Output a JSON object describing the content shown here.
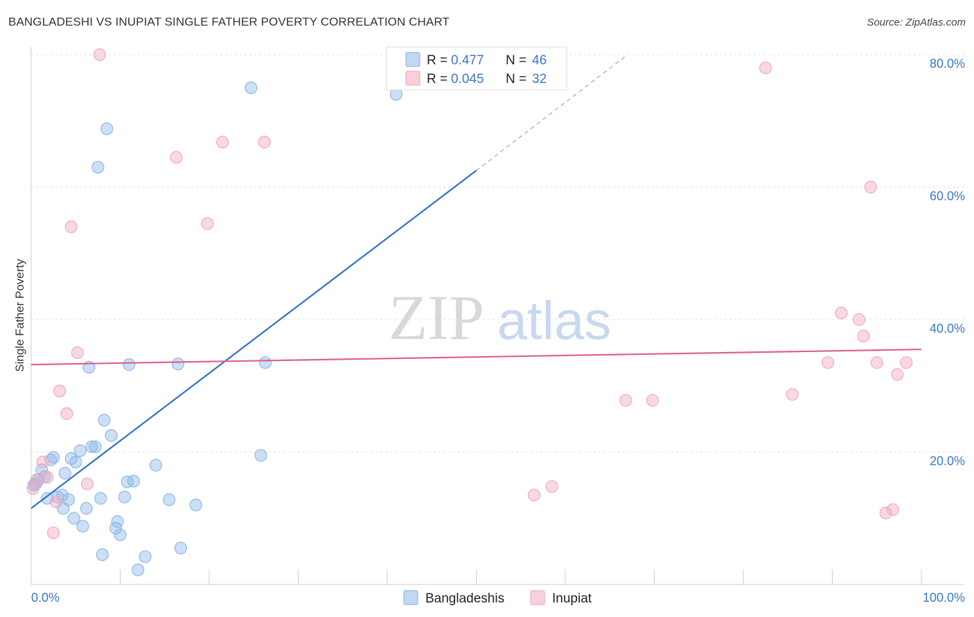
{
  "header": {
    "title": "BANGLADESHI VS INUPIAT SINGLE FATHER POVERTY CORRELATION CHART",
    "source": "Source: ZipAtlas.com"
  },
  "watermark": {
    "zip": "ZIP",
    "atlas": "atlas"
  },
  "chart_data": {
    "type": "scatter",
    "title": "BANGLADESHI VS INUPIAT SINGLE FATHER POVERTY CORRELATION CHART",
    "xlabel": "",
    "ylabel": "Single Father Poverty",
    "xlim": [
      0,
      100
    ],
    "ylim": [
      0,
      80
    ],
    "x_tick_labels": {
      "left": "0.0%",
      "right": "100.0%"
    },
    "y_ticks": [
      {
        "value": 20,
        "label": "20.0%"
      },
      {
        "value": 40,
        "label": "40.0%"
      },
      {
        "value": 60,
        "label": "60.0%"
      },
      {
        "value": 80,
        "label": "80.0%"
      }
    ],
    "legend": [
      {
        "series": "Bangladeshis",
        "r_label": "R =",
        "r_value": "0.477",
        "n_label": "N =",
        "n_value": "46"
      },
      {
        "series": "Inupiat",
        "r_label": "R =",
        "r_value": "0.045",
        "n_label": "N =",
        "n_value": "32"
      }
    ],
    "series": [
      {
        "name": "Bangladeshis",
        "color": "#8fb8e8",
        "line_color": "#2f6fcc",
        "trend": {
          "x0": 0,
          "y0": 11.5,
          "x1": 50,
          "y1": 62.5,
          "dash_to_x": 67,
          "dash_to_y": 80
        },
        "points": [
          [
            0.5,
            15.2
          ],
          [
            0.8,
            15.8
          ],
          [
            1.2,
            17.3
          ],
          [
            1.5,
            16.3
          ],
          [
            1.8,
            13.0
          ],
          [
            2.2,
            18.8
          ],
          [
            2.5,
            19.2
          ],
          [
            3.0,
            13.2
          ],
          [
            3.5,
            13.5
          ],
          [
            3.6,
            11.5
          ],
          [
            3.8,
            16.8
          ],
          [
            4.2,
            12.8
          ],
          [
            4.5,
            19.0
          ],
          [
            4.8,
            10.0
          ],
          [
            5.0,
            18.5
          ],
          [
            5.5,
            20.2
          ],
          [
            5.8,
            8.8
          ],
          [
            6.2,
            11.5
          ],
          [
            6.5,
            32.8
          ],
          [
            6.8,
            20.8
          ],
          [
            7.2,
            20.8
          ],
          [
            7.5,
            63.0
          ],
          [
            7.8,
            13.0
          ],
          [
            8.0,
            4.5
          ],
          [
            8.2,
            24.8
          ],
          [
            8.5,
            68.8
          ],
          [
            9.0,
            22.5
          ],
          [
            9.5,
            8.5
          ],
          [
            9.7,
            9.5
          ],
          [
            10.0,
            7.5
          ],
          [
            10.5,
            13.2
          ],
          [
            10.8,
            15.5
          ],
          [
            11.0,
            33.2
          ],
          [
            11.5,
            15.6
          ],
          [
            12.0,
            2.2
          ],
          [
            12.8,
            4.2
          ],
          [
            14.0,
            18.0
          ],
          [
            15.5,
            12.8
          ],
          [
            16.5,
            33.3
          ],
          [
            16.8,
            5.5
          ],
          [
            18.5,
            12.0
          ],
          [
            24.7,
            75.0
          ],
          [
            25.8,
            19.5
          ],
          [
            26.3,
            33.5
          ],
          [
            41.0,
            74.0
          ],
          [
            0.3,
            15.0
          ]
        ]
      },
      {
        "name": "Inupiat",
        "color": "#f2a9bf",
        "line_color": "#e0608a",
        "trend": {
          "x0": 0,
          "y0": 33.2,
          "x1": 100,
          "y1": 35.5
        },
        "points": [
          [
            0.2,
            14.5
          ],
          [
            0.6,
            15.8
          ],
          [
            1.3,
            18.5
          ],
          [
            1.8,
            16.2
          ],
          [
            2.5,
            7.8
          ],
          [
            2.8,
            12.5
          ],
          [
            3.2,
            29.2
          ],
          [
            4.0,
            25.8
          ],
          [
            4.5,
            54.0
          ],
          [
            5.2,
            35.0
          ],
          [
            6.3,
            15.2
          ],
          [
            7.7,
            80.0
          ],
          [
            16.3,
            64.5
          ],
          [
            19.8,
            54.5
          ],
          [
            21.5,
            66.8
          ],
          [
            26.2,
            66.8
          ],
          [
            56.5,
            13.5
          ],
          [
            58.5,
            14.8
          ],
          [
            66.8,
            27.8
          ],
          [
            69.8,
            27.8
          ],
          [
            82.5,
            78.0
          ],
          [
            85.5,
            28.7
          ],
          [
            89.5,
            33.5
          ],
          [
            91.0,
            41.0
          ],
          [
            93.0,
            40.0
          ],
          [
            93.5,
            37.5
          ],
          [
            94.3,
            60.0
          ],
          [
            95.0,
            33.5
          ],
          [
            96.0,
            10.8
          ],
          [
            96.8,
            11.3
          ],
          [
            97.3,
            31.7
          ],
          [
            98.3,
            33.5
          ]
        ]
      }
    ]
  }
}
